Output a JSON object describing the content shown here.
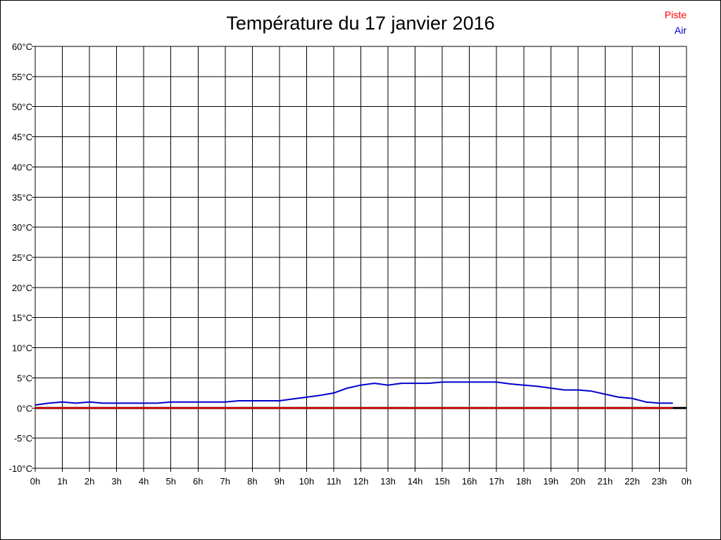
{
  "chart_data": {
    "type": "line",
    "title": "Température du 17 janvier 2016",
    "x_tick_labels": [
      "0h",
      "1h",
      "2h",
      "3h",
      "4h",
      "5h",
      "6h",
      "7h",
      "8h",
      "9h",
      "10h",
      "11h",
      "12h",
      "13h",
      "14h",
      "15h",
      "16h",
      "17h",
      "18h",
      "19h",
      "20h",
      "21h",
      "22h",
      "23h",
      "0h"
    ],
    "y_tick_labels": [
      "-10°C",
      "-5°C",
      "0°C",
      "5°C",
      "10°C",
      "15°C",
      "20°C",
      "25°C",
      "30°C",
      "35°C",
      "40°C",
      "45°C",
      "50°C",
      "55°C",
      "60°C"
    ],
    "xlim": [
      0,
      24
    ],
    "ylim": [
      -10,
      60
    ],
    "grid": true,
    "legend": "top-right",
    "series": [
      {
        "name": "Piste",
        "color": "#ff0000",
        "x": [
          0,
          23.5
        ],
        "y": [
          0,
          0
        ]
      },
      {
        "name": "Air",
        "color": "#0000cc",
        "x": [
          0,
          0.5,
          1,
          1.5,
          2,
          2.5,
          3,
          3.5,
          4,
          4.5,
          5,
          5.5,
          6,
          6.5,
          7,
          7.5,
          8,
          8.5,
          9,
          9.5,
          10,
          10.5,
          11,
          11.5,
          12,
          12.5,
          13,
          13.5,
          14,
          14.5,
          15,
          15.5,
          16,
          16.5,
          17,
          17.5,
          18,
          18.5,
          19,
          19.5,
          20,
          20.5,
          21,
          21.5,
          22,
          22.5,
          23,
          23.5
        ],
        "y": [
          0.5,
          0.8,
          1.0,
          0.8,
          1.0,
          0.8,
          0.8,
          0.8,
          0.8,
          0.8,
          1.0,
          1.0,
          1.0,
          1.0,
          1.0,
          1.2,
          1.2,
          1.2,
          1.2,
          1.5,
          1.8,
          2.1,
          2.5,
          3.3,
          3.8,
          4.1,
          3.8,
          4.1,
          4.1,
          4.1,
          4.3,
          4.3,
          4.3,
          4.3,
          4.3,
          4.0,
          3.8,
          3.6,
          3.3,
          3.0,
          3.0,
          2.8,
          2.3,
          1.8,
          1.6,
          1.0,
          0.8,
          0.8
        ]
      }
    ]
  },
  "colors": {
    "background": "#ffffff",
    "grid": "#000000",
    "axis_zero": "#000000"
  }
}
